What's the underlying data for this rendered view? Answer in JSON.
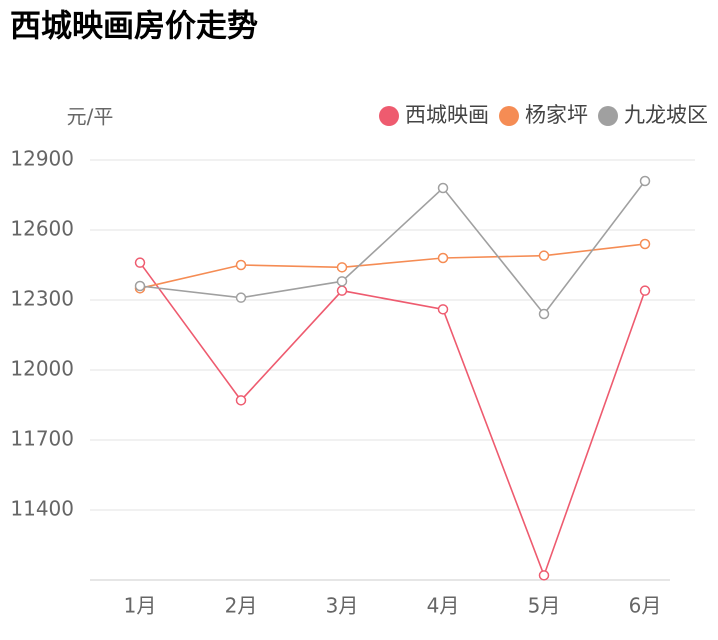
{
  "chart_data": {
    "type": "line",
    "title": "西城映画房价走势",
    "y_label": "元/平",
    "categories": [
      "1月",
      "2月",
      "3月",
      "4月",
      "5月",
      "6月"
    ],
    "series": [
      {
        "name": "西城映画",
        "color": "#ee5b6f",
        "values": [
          12460,
          11870,
          12340,
          12260,
          11120,
          12340
        ]
      },
      {
        "name": "杨家坪",
        "color": "#f58c54",
        "values": [
          12350,
          12450,
          12440,
          12480,
          12490,
          12540
        ]
      },
      {
        "name": "九龙坡区",
        "color": "#a0a0a0",
        "values": [
          12360,
          12310,
          12380,
          12780,
          12240,
          12810
        ]
      }
    ],
    "ylim": [
      11100,
      12900
    ],
    "yticks": [
      11400,
      11700,
      12000,
      12300,
      12600,
      12900
    ],
    "grid": true
  }
}
